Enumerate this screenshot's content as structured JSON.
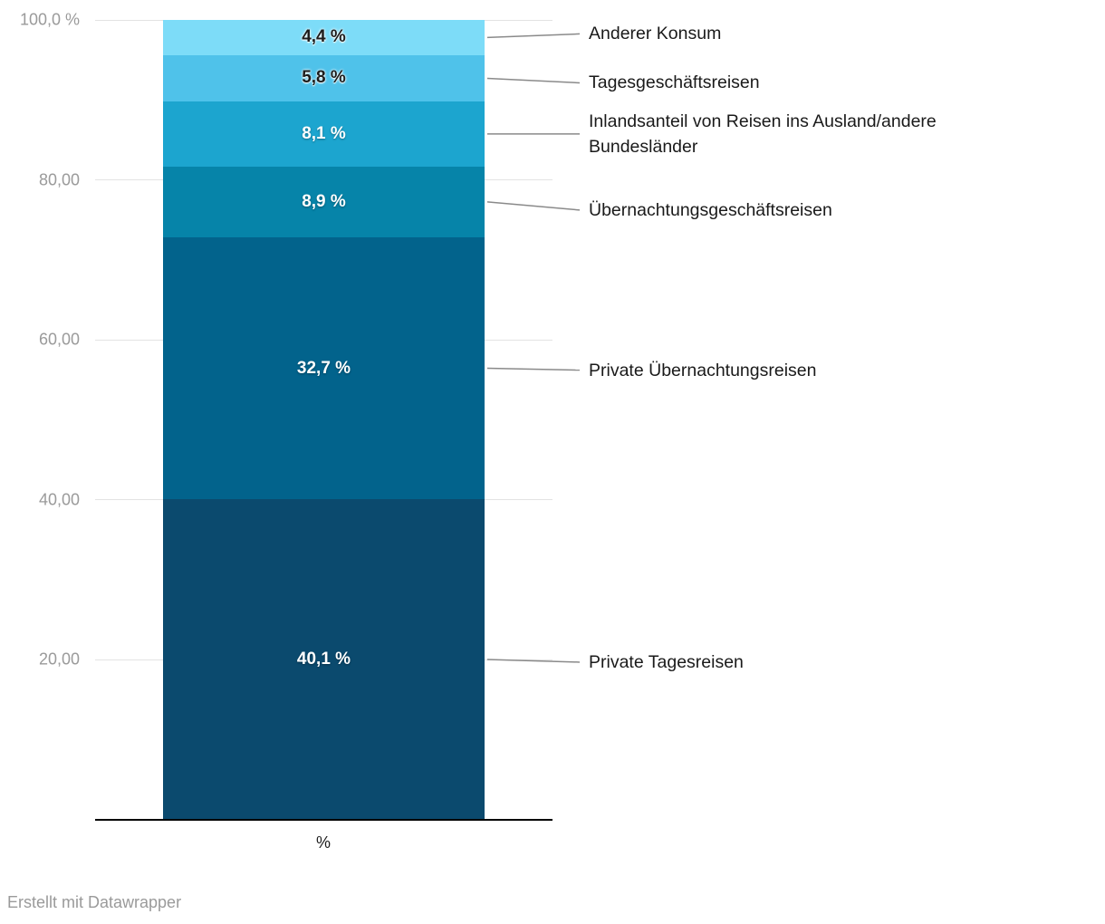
{
  "chart_data": {
    "type": "bar",
    "stacked": true,
    "orientation": "vertical",
    "title": "",
    "xlabel": "%",
    "ylabel": "",
    "ylim": [
      0,
      100
    ],
    "grid": true,
    "legend_position": "right-annotations",
    "categories": [
      "%"
    ],
    "y_ticks": [
      {
        "value": 100,
        "label": "100,0 %"
      },
      {
        "value": 80,
        "label": "80,00"
      },
      {
        "value": 60,
        "label": "60,00"
      },
      {
        "value": 40,
        "label": "40,00"
      },
      {
        "value": 20,
        "label": "20,00"
      }
    ],
    "series": [
      {
        "name": "Anderer Konsum",
        "value": 4.4,
        "label": "4,4 %",
        "color": "#7ddcf8",
        "label_color": "#1d1d1d"
      },
      {
        "name": "Tagesgeschäftsreisen",
        "value": 5.8,
        "label": "5,8 %",
        "color": "#4fc2ea",
        "label_color": "#1d1d1d"
      },
      {
        "name": "Inlandsanteil von Reisen ins Ausland/andere Bundesländer",
        "value": 8.1,
        "label": "8,1 %",
        "color": "#1ca5cf",
        "label_color": "#ffffff"
      },
      {
        "name": "Übernachtungsgeschäftsreisen",
        "value": 8.9,
        "label": "8,9 %",
        "color": "#0684a9",
        "label_color": "#ffffff"
      },
      {
        "name": "Private Übernachtungsreisen",
        "value": 32.7,
        "label": "32,7 %",
        "color": "#02638c",
        "label_color": "#ffffff"
      },
      {
        "name": "Private Tagesreisen",
        "value": 40.1,
        "label": "40,1 %",
        "color": "#0b4a6e",
        "label_color": "#ffffff"
      }
    ]
  },
  "footer": {
    "credit": "Erstellt mit Datawrapper"
  }
}
